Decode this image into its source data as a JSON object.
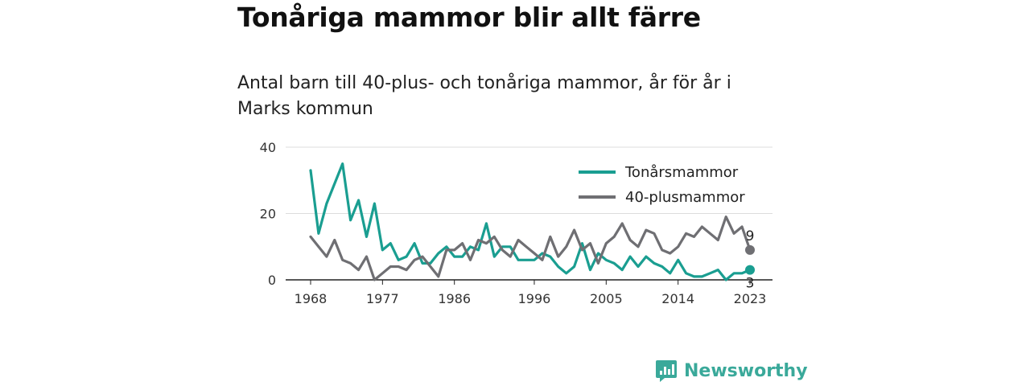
{
  "header": {
    "title": "Tonåriga mammor blir allt färre",
    "subtitle": "Antal barn till 40-plus- och tonåriga mammor, år för år i Marks kommun"
  },
  "brand": {
    "name": "Newsworthy",
    "icon": "newsworthy-logo-icon",
    "color": "#3aa99a"
  },
  "chart_data": {
    "type": "line",
    "title": "",
    "xlabel": "",
    "ylabel": "",
    "x": [
      1968,
      1969,
      1970,
      1971,
      1972,
      1973,
      1974,
      1975,
      1976,
      1977,
      1978,
      1979,
      1980,
      1981,
      1982,
      1983,
      1984,
      1985,
      1986,
      1987,
      1988,
      1989,
      1990,
      1991,
      1992,
      1993,
      1994,
      1995,
      1996,
      1997,
      1998,
      1999,
      2000,
      2001,
      2002,
      2003,
      2004,
      2005,
      2006,
      2007,
      2008,
      2009,
      2010,
      2011,
      2012,
      2013,
      2014,
      2015,
      2016,
      2017,
      2018,
      2019,
      2020,
      2021,
      2022,
      2023
    ],
    "x_ticks": [
      1968,
      1977,
      1986,
      1996,
      2005,
      2014,
      2023
    ],
    "xlim": [
      1967,
      2026
    ],
    "y_ticks": [
      0,
      20,
      40
    ],
    "ylim": [
      0,
      40
    ],
    "grid": true,
    "legend": "top-right",
    "series": [
      {
        "name": "Tonårsmammor",
        "color": "#1a9e91",
        "values": [
          33,
          14,
          23,
          29,
          35,
          18,
          24,
          13,
          23,
          9,
          11,
          6,
          7,
          11,
          5,
          5,
          8,
          10,
          7,
          7,
          10,
          9,
          17,
          7,
          10,
          10,
          6,
          6,
          6,
          8,
          7,
          4,
          2,
          4,
          11,
          3,
          8,
          6,
          5,
          3,
          7,
          4,
          7,
          5,
          4,
          2,
          6,
          2,
          1,
          1,
          2,
          3,
          0,
          2,
          2,
          3
        ],
        "end_label": "3"
      },
      {
        "name": "40-plusmammor",
        "color": "#6f6f73",
        "values": [
          13,
          10,
          7,
          12,
          6,
          5,
          3,
          7,
          0,
          2,
          4,
          4,
          3,
          6,
          7,
          4,
          1,
          9,
          9,
          11,
          6,
          12,
          11,
          13,
          9,
          7,
          12,
          10,
          8,
          6,
          13,
          7,
          10,
          15,
          9,
          11,
          5,
          11,
          13,
          17,
          12,
          10,
          15,
          14,
          9,
          8,
          10,
          14,
          13,
          16,
          14,
          12,
          19,
          14,
          16,
          9
        ],
        "end_label": "9"
      }
    ]
  }
}
